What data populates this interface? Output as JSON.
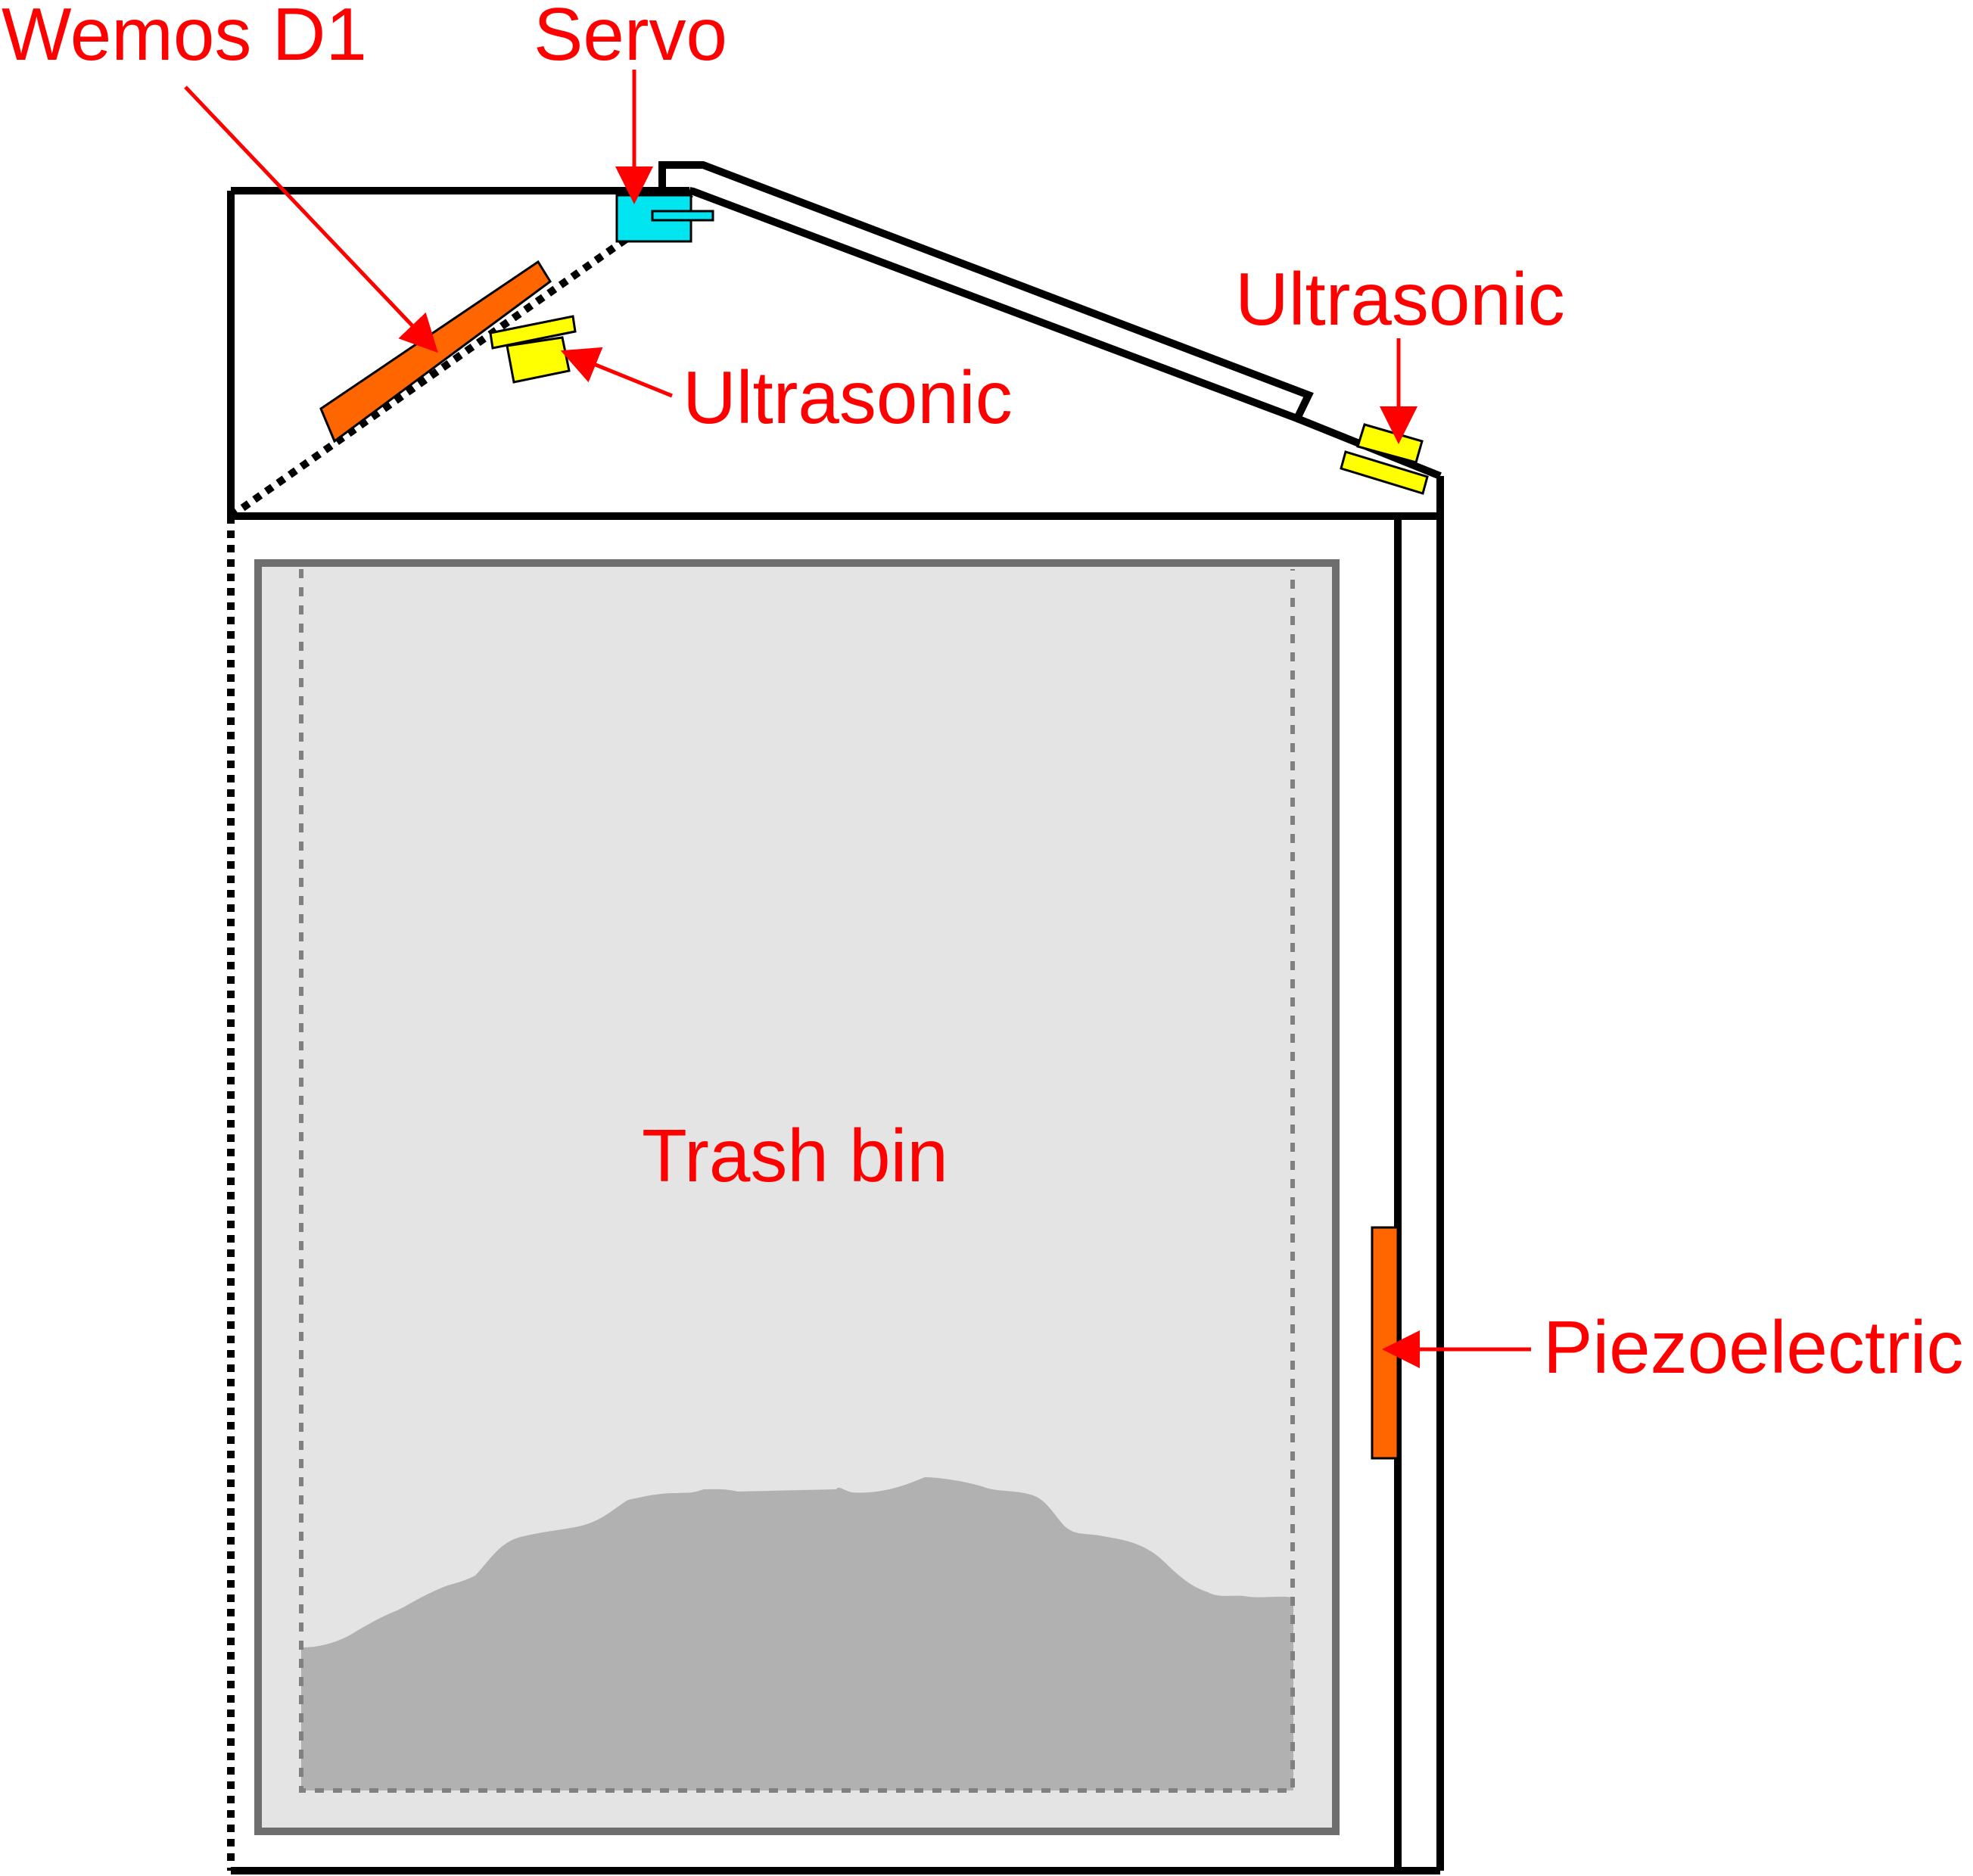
{
  "labels": {
    "wemos": "Wemos D1",
    "servo": "Servo",
    "ultrasonic_inner": "Ultrasonic",
    "ultrasonic_outer": "Ultrasonic",
    "trash_bin": "Trash bin",
    "piezoelectric": "Piezoelectric"
  },
  "colors": {
    "label": "#ff0000",
    "arrow": "#ff0000",
    "outline": "#000000",
    "wemos_board": "#ff6600",
    "servo": "#00e5f0",
    "ultrasonic": "#ffff00",
    "piezo": "#ff6600",
    "bin_fill": "#e4e4e4",
    "bin_border": "#6e6e6e",
    "liner": "#808080",
    "trash": "#b1b1b1"
  }
}
